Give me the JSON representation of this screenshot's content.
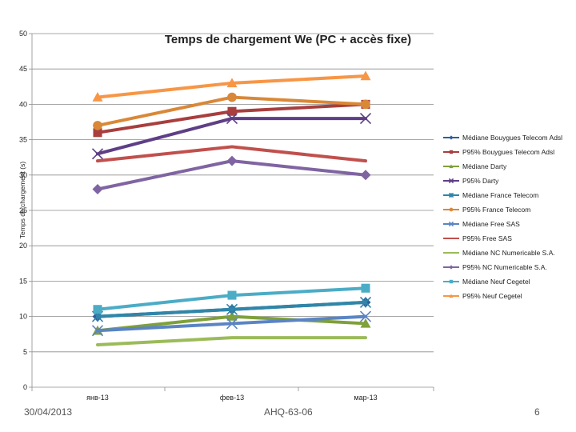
{
  "chart_data": {
    "type": "line",
    "title": "Temps de chargement We (PC + accès fixe)",
    "ylabel": "Temps de chargement (s)",
    "xlabel": "",
    "ylim": [
      0,
      50
    ],
    "yticks": [
      0,
      5,
      10,
      15,
      20,
      25,
      30,
      35,
      40,
      45,
      50
    ],
    "grid": true,
    "legend": "right",
    "categories": [
      "янв-13",
      "фев-13",
      "мар-13"
    ],
    "series": [
      {
        "name": "Médiane Bouygues Telecom Adsl",
        "color": "#2E5E9E",
        "marker": "diamond",
        "values": [
          10,
          11,
          12
        ]
      },
      {
        "name": "P95% Bouygues Telecom Adsl",
        "color": "#A83E3E",
        "marker": "square",
        "values": [
          36,
          39,
          40
        ]
      },
      {
        "name": "Médiane Darty",
        "color": "#7FA03A",
        "marker": "triangle",
        "values": [
          8,
          10,
          9
        ]
      },
      {
        "name": "P95% Darty",
        "color": "#5E3F86",
        "marker": "x",
        "values": [
          33,
          38,
          38
        ]
      },
      {
        "name": "Médiane France Telecom",
        "color": "#2F86A8",
        "marker": "star",
        "values": [
          10,
          11,
          12
        ]
      },
      {
        "name": "P95% France Telecom",
        "color": "#D98838",
        "marker": "circle",
        "values": [
          37,
          41,
          40
        ]
      },
      {
        "name": "Médiane Free SAS",
        "color": "#5A84C4",
        "marker": "x",
        "values": [
          8,
          9,
          10
        ]
      },
      {
        "name": "P95% Free SAS",
        "color": "#C0504D",
        "marker": "none",
        "values": [
          32,
          34,
          32
        ]
      },
      {
        "name": "Médiane NC Numericable S.A.",
        "color": "#9BBB59",
        "marker": "none",
        "values": [
          6,
          7,
          7
        ]
      },
      {
        "name": "P95% NC Numericable S.A.",
        "color": "#8064A2",
        "marker": "diamond",
        "values": [
          28,
          32,
          30
        ]
      },
      {
        "name": "Médiane Neuf Cegetel",
        "color": "#4BACC6",
        "marker": "square",
        "values": [
          11,
          13,
          14
        ]
      },
      {
        "name": "P95% Neuf Cegetel",
        "color": "#F79646",
        "marker": "triangle",
        "values": [
          41,
          43,
          44
        ]
      }
    ]
  },
  "footer": {
    "date": "30/04/2013",
    "code": "AHQ-63-06",
    "page": "6"
  }
}
